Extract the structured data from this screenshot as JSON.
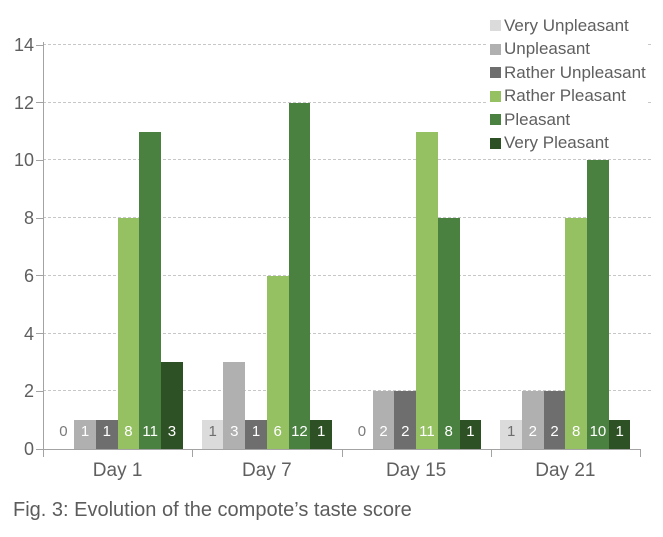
{
  "chart_data": {
    "type": "bar",
    "title": "",
    "xlabel": "",
    "ylabel": "",
    "categories": [
      "Day 1",
      "Day 7",
      "Day 15",
      "Day 21"
    ],
    "series": [
      {
        "name": "Very Unpleasant",
        "color": "#dbdbdb",
        "label_color": "#6e6e6e",
        "values": [
          0,
          1,
          0,
          1
        ]
      },
      {
        "name": "Unpleasant",
        "color": "#b0b0b0",
        "label_color": "#ffffff",
        "values": [
          1,
          3,
          2,
          2
        ]
      },
      {
        "name": "Rather Unpleasant",
        "color": "#6e6e6e",
        "label_color": "#ffffff",
        "values": [
          1,
          1,
          2,
          2
        ]
      },
      {
        "name": "Rather Pleasant",
        "color": "#95c163",
        "label_color": "#ffffff",
        "values": [
          8,
          6,
          11,
          8
        ]
      },
      {
        "name": "Pleasant",
        "color": "#4a8140",
        "label_color": "#ffffff",
        "values": [
          11,
          12,
          8,
          10
        ]
      },
      {
        "name": "Very Pleasant",
        "color": "#2d5124",
        "label_color": "#ffffff",
        "values": [
          3,
          1,
          1,
          1
        ]
      }
    ],
    "ylim": [
      0,
      14
    ],
    "yticks": [
      0,
      2,
      4,
      6,
      8,
      10,
      12,
      14
    ],
    "grid": "dashed-horizontal",
    "legend_position": "top-right",
    "bar_value_labels": true,
    "zero_label_color": "#7a7a7a",
    "axis_color": "#a3a3a3",
    "grid_color": "#c7c7c7"
  },
  "caption": "Fig. 3: Evolution of the compote’s taste score"
}
